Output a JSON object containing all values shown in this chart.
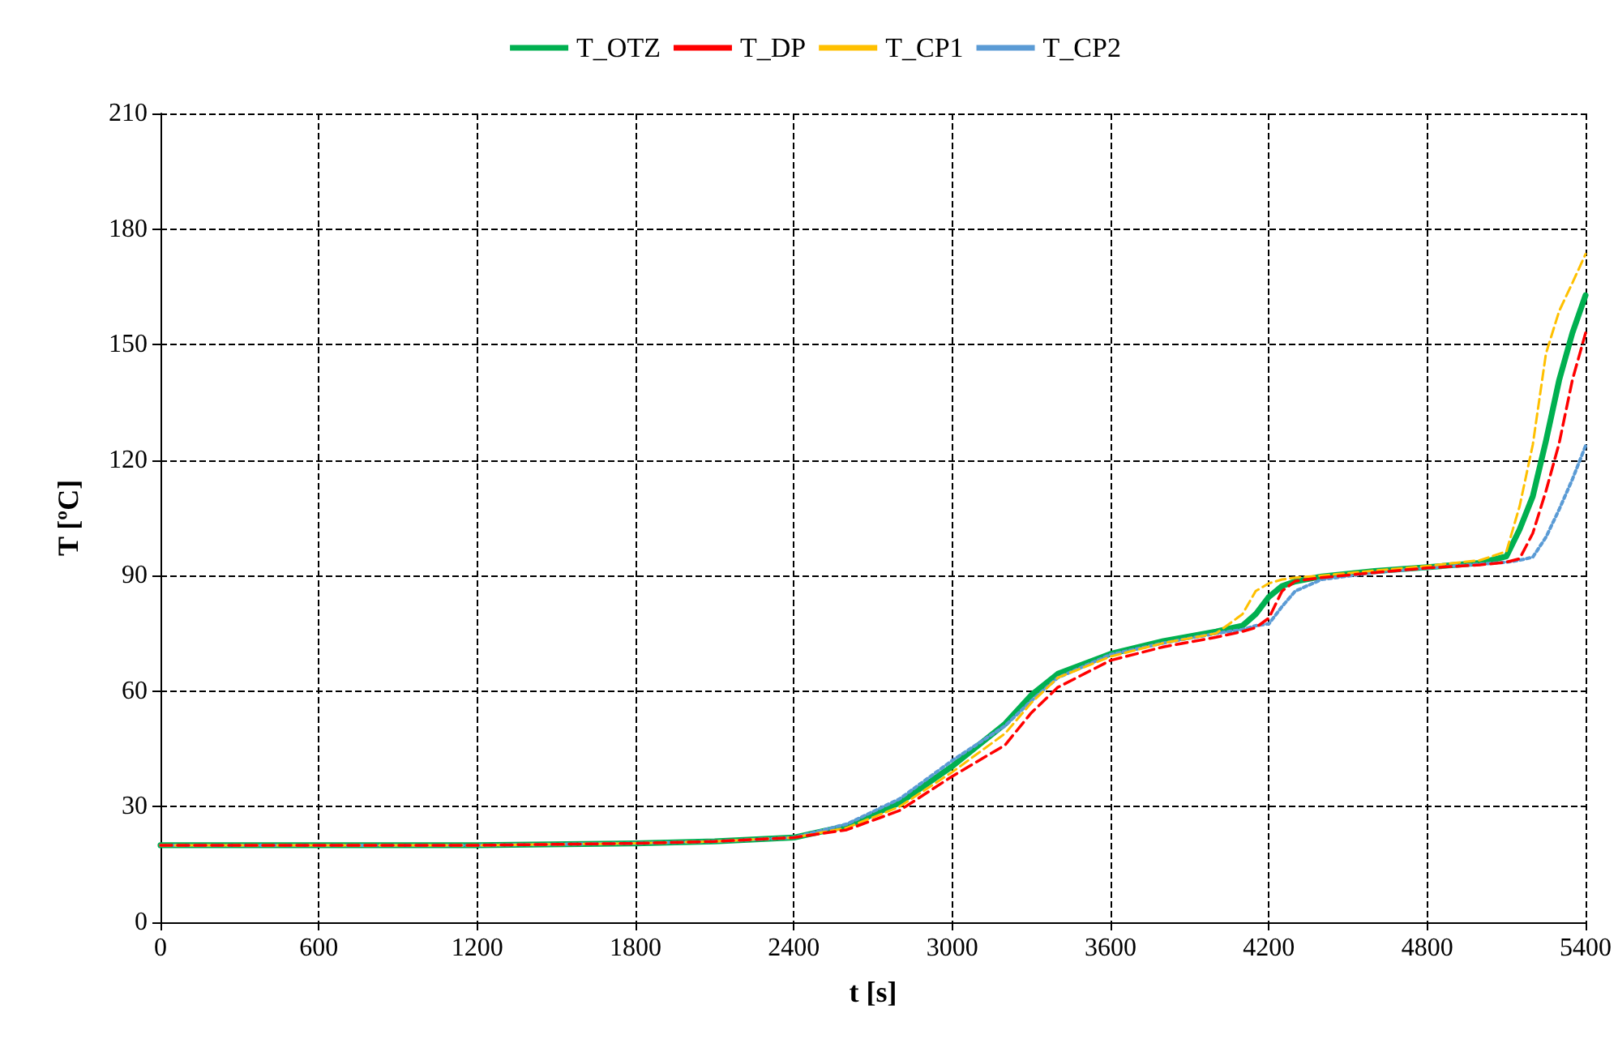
{
  "chart_data": {
    "type": "line",
    "xlabel": "t [s]",
    "ylabel": "T [ºC]",
    "x": [
      0,
      600,
      1200,
      1800,
      2100,
      2400,
      2600,
      2800,
      3000,
      3200,
      3300,
      3400,
      3600,
      3800,
      4000,
      4100,
      4150,
      4200,
      4250,
      4300,
      4400,
      4600,
      4800,
      5000,
      5100,
      5150,
      5200,
      5250,
      5300,
      5350,
      5400
    ],
    "series": [
      {
        "name": "T_OTZ",
        "color": "#00b050",
        "line_style": "solid",
        "values": [
          20,
          20,
          20,
          20.5,
          21,
          22,
          25,
          31,
          40.5,
          51.5,
          59,
          64.5,
          69.7,
          73,
          75.5,
          77,
          80,
          84.5,
          87.3,
          88.5,
          89.8,
          91.2,
          92.2,
          93.3,
          95,
          102,
          110.6,
          125,
          140.8,
          153,
          162.8
        ]
      },
      {
        "name": "T_DP",
        "color": "#ff0000",
        "line_style": "dashed",
        "values": [
          20,
          20,
          20,
          20.5,
          21,
          22,
          24,
          29,
          37.9,
          46,
          54.4,
          61,
          68,
          71.5,
          74,
          75.5,
          76.5,
          79,
          86,
          88.6,
          89.5,
          90.8,
          92,
          92.8,
          93.5,
          94.4,
          101,
          112,
          124.4,
          140.8,
          153
        ]
      },
      {
        "name": "T_CP1",
        "color": "#ffc000",
        "line_style": "dashed",
        "values": [
          20,
          20,
          20,
          20.5,
          21,
          22,
          24.5,
          30,
          39,
          49,
          57,
          63.5,
          69,
          72.5,
          75,
          80,
          86,
          88,
          89,
          89.5,
          90,
          91.3,
          92.5,
          94,
          96.3,
          108,
          124,
          147.7,
          158.7,
          166,
          173.5
        ]
      },
      {
        "name": "T_CP2",
        "color": "#5b9bd5",
        "line_style": "dotted",
        "values": [
          20,
          20,
          20,
          20.5,
          21,
          22,
          25.5,
          32,
          42,
          51,
          57.5,
          63.5,
          69.5,
          72.5,
          75,
          76,
          77,
          77.5,
          82,
          86,
          89,
          90.8,
          92,
          93,
          93.5,
          94,
          94.8,
          100,
          107.2,
          115,
          123.7
        ]
      }
    ],
    "xlim": [
      0,
      5400
    ],
    "xticks": [
      0,
      600,
      1200,
      1800,
      2400,
      3000,
      3600,
      4200,
      4800,
      5400
    ],
    "ylim": [
      0,
      210
    ],
    "yticks": [
      0,
      30,
      60,
      90,
      120,
      150,
      180,
      210
    ],
    "grid": true,
    "legend": "top",
    "marker": "none"
  }
}
